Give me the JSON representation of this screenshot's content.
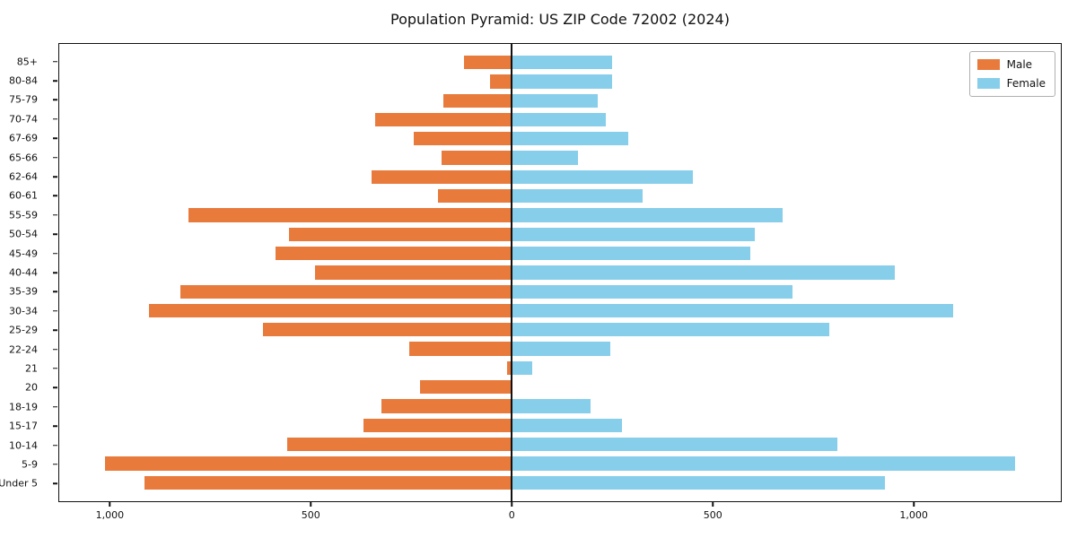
{
  "title": "Population Pyramid: US ZIP Code 72002 (2024)",
  "legend": {
    "male_label": "Male",
    "female_label": "Female"
  },
  "colors": {
    "male": "#E87A3C",
    "female": "#87CEEB",
    "axis": "#111111",
    "background": "#ffffff"
  },
  "chart_data": {
    "type": "bar",
    "subtype": "population-pyramid",
    "orientation": "horizontal",
    "title": "Population Pyramid: US ZIP Code 72002 (2024)",
    "xlabel": "",
    "ylabel": "",
    "grid": false,
    "legend_position": "upper right",
    "xlim": [
      -1128,
      1368
    ],
    "x_ticks": [
      {
        "value": -1000,
        "label": "1,000"
      },
      {
        "value": -500,
        "label": "500"
      },
      {
        "value": 0,
        "label": "0"
      },
      {
        "value": 500,
        "label": "500"
      },
      {
        "value": 1000,
        "label": "1,000"
      }
    ],
    "categories_top_to_bottom": [
      "85+",
      "80-84",
      "75-79",
      "70-74",
      "67-69",
      "65-66",
      "62-64",
      "60-61",
      "55-59",
      "50-54",
      "45-49",
      "40-44",
      "35-39",
      "30-34",
      "25-29",
      "22-24",
      "21",
      "20",
      "18-19",
      "15-17",
      "10-14",
      "5-9",
      "Under 5"
    ],
    "series": [
      {
        "name": "Male",
        "side": "left",
        "color": "#E87A3C",
        "values": [
          120,
          55,
          170,
          340,
          245,
          175,
          350,
          185,
          805,
          555,
          590,
          490,
          825,
          905,
          620,
          255,
          12,
          230,
          325,
          370,
          560,
          1015,
          915
        ]
      },
      {
        "name": "Female",
        "side": "right",
        "color": "#87CEEB",
        "values": [
          250,
          250,
          215,
          235,
          290,
          165,
          450,
          325,
          675,
          605,
          595,
          955,
          700,
          1100,
          790,
          245,
          50,
          0,
          195,
          275,
          810,
          1255,
          930
        ]
      }
    ]
  }
}
